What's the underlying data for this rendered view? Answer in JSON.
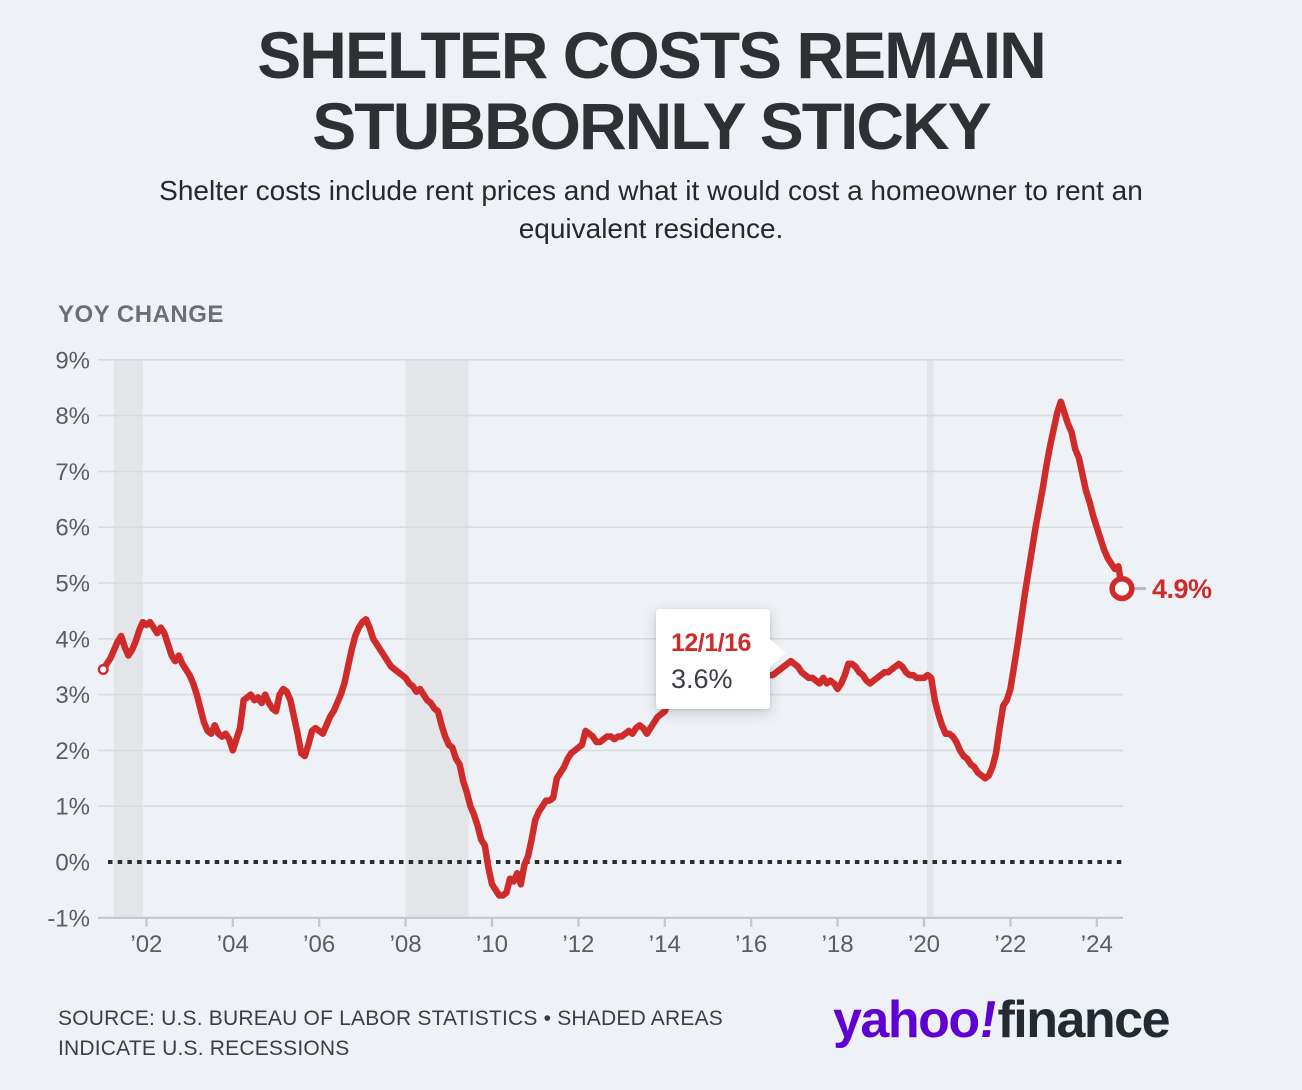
{
  "title": {
    "line1": "SHELTER COSTS REMAIN",
    "line2": "STUBBORNLY STICKY"
  },
  "subtitle": {
    "line1": "Shelter costs include rent prices and what it would cost a homeowner to rent an",
    "line2": "equivalent residence."
  },
  "source": {
    "line1": "SOURCE: U.S. BUREAU OF LABOR STATISTICS • SHADED AREAS",
    "line2": "INDICATE U.S. RECESSIONS"
  },
  "logo": {
    "yahoo": "yahoo",
    "bang": "!",
    "finance": "finance"
  },
  "colors": {
    "background": "#eef1f5",
    "line": "#d02b2b",
    "title_text": "#2e3134",
    "subtitle_text": "#26282c",
    "muted_label": "#6c6f75",
    "axis_text": "#5a5e64",
    "gridline": "#d8dbe0",
    "axis_line": "#c3c7cd",
    "recession_band": "#e3e5e9",
    "zero_line": "#2b2d30",
    "end_dash": "#b7bbc1",
    "source_text": "#3b3e44",
    "logo_purple": "#5f01d1",
    "logo_dark": "#232a31",
    "tooltip_bg": "#ffffff",
    "tooltip_value": "#3a3d42"
  },
  "chart_data": {
    "type": "line",
    "title": "YOY CHANGE",
    "unit": "%",
    "frequency": "monthly",
    "start": {
      "year": 2001,
      "month": 1
    },
    "end": {
      "year": 2024,
      "month": 8
    },
    "ylim": [
      -1,
      9
    ],
    "grid": true,
    "zero_line_style": "dotted",
    "legend_position": "none",
    "yticks": [
      {
        "value": 9,
        "label": "9%"
      },
      {
        "value": 8,
        "label": "8%"
      },
      {
        "value": 7,
        "label": "7%"
      },
      {
        "value": 6,
        "label": "6%"
      },
      {
        "value": 5,
        "label": "5%"
      },
      {
        "value": 4,
        "label": "4%"
      },
      {
        "value": 3,
        "label": "3%"
      },
      {
        "value": 2,
        "label": "2%"
      },
      {
        "value": 1,
        "label": "1%"
      },
      {
        "value": 0,
        "label": "0%"
      },
      {
        "value": -1,
        "label": "-1%"
      }
    ],
    "xticks": [
      {
        "year": 2002,
        "label": "’02"
      },
      {
        "year": 2004,
        "label": "’04"
      },
      {
        "year": 2006,
        "label": "’06"
      },
      {
        "year": 2008,
        "label": "’08"
      },
      {
        "year": 2010,
        "label": "’10"
      },
      {
        "year": 2012,
        "label": "’12"
      },
      {
        "year": 2014,
        "label": "’14"
      },
      {
        "year": 2016,
        "label": "’16"
      },
      {
        "year": 2018,
        "label": "’18"
      },
      {
        "year": 2020,
        "label": "’20"
      },
      {
        "year": 2022,
        "label": "’22"
      },
      {
        "year": 2024,
        "label": "’24"
      }
    ],
    "recessions": [
      {
        "start": 2001.25,
        "end": 2001.92
      },
      {
        "start": 2008.0,
        "end": 2009.46
      },
      {
        "start": 2020.07,
        "end": 2020.22
      }
    ],
    "tooltip": {
      "date": "12/1/16",
      "value": "3.6%"
    },
    "end_label": "4.9%",
    "end_value": 4.9,
    "values": [
      3.45,
      3.55,
      3.65,
      3.8,
      3.95,
      4.05,
      3.85,
      3.7,
      3.8,
      3.95,
      4.15,
      4.3,
      4.25,
      4.3,
      4.2,
      4.1,
      4.2,
      4.1,
      3.9,
      3.7,
      3.6,
      3.7,
      3.55,
      3.45,
      3.35,
      3.2,
      3.0,
      2.75,
      2.5,
      2.35,
      2.3,
      2.45,
      2.3,
      2.25,
      2.3,
      2.2,
      2.0,
      2.2,
      2.4,
      2.9,
      2.95,
      3.0,
      2.9,
      2.95,
      2.85,
      3.0,
      2.85,
      2.75,
      2.7,
      3.0,
      3.1,
      3.05,
      2.9,
      2.6,
      2.3,
      1.95,
      1.9,
      2.1,
      2.35,
      2.4,
      2.35,
      2.3,
      2.45,
      2.6,
      2.7,
      2.85,
      3.0,
      3.2,
      3.5,
      3.8,
      4.05,
      4.2,
      4.3,
      4.35,
      4.2,
      4.0,
      3.9,
      3.8,
      3.7,
      3.6,
      3.5,
      3.45,
      3.4,
      3.35,
      3.3,
      3.2,
      3.15,
      3.05,
      3.1,
      3.0,
      2.9,
      2.85,
      2.75,
      2.7,
      2.45,
      2.25,
      2.1,
      2.05,
      1.85,
      1.75,
      1.45,
      1.25,
      1.0,
      0.85,
      0.65,
      0.4,
      0.3,
      -0.1,
      -0.4,
      -0.5,
      -0.6,
      -0.6,
      -0.55,
      -0.3,
      -0.35,
      -0.2,
      -0.4,
      -0.05,
      0.1,
      0.4,
      0.75,
      0.9,
      1.0,
      1.1,
      1.1,
      1.15,
      1.5,
      1.6,
      1.7,
      1.85,
      1.95,
      2.0,
      2.05,
      2.1,
      2.35,
      2.3,
      2.25,
      2.15,
      2.15,
      2.2,
      2.25,
      2.25,
      2.2,
      2.25,
      2.25,
      2.3,
      2.35,
      2.3,
      2.4,
      2.45,
      2.4,
      2.3,
      2.4,
      2.5,
      2.6,
      2.65,
      2.7,
      2.85,
      2.95,
      3.0,
      3.0,
      3.05,
      3.05,
      3.1,
      3.1,
      3.15,
      3.15,
      3.2,
      3.15,
      3.2,
      3.25,
      3.3,
      3.35,
      3.4,
      3.45,
      3.5,
      3.45,
      3.4,
      3.4,
      3.4,
      3.4,
      3.45,
      3.5,
      3.45,
      3.4,
      3.35,
      3.35,
      3.4,
      3.45,
      3.5,
      3.55,
      3.6,
      3.55,
      3.5,
      3.4,
      3.35,
      3.3,
      3.3,
      3.25,
      3.2,
      3.3,
      3.2,
      3.25,
      3.2,
      3.1,
      3.2,
      3.35,
      3.55,
      3.55,
      3.5,
      3.4,
      3.35,
      3.25,
      3.2,
      3.25,
      3.3,
      3.35,
      3.4,
      3.4,
      3.45,
      3.5,
      3.55,
      3.5,
      3.4,
      3.35,
      3.35,
      3.3,
      3.3,
      3.3,
      3.35,
      3.3,
      2.9,
      2.65,
      2.45,
      2.3,
      2.3,
      2.25,
      2.15,
      2.0,
      1.9,
      1.85,
      1.75,
      1.7,
      1.6,
      1.55,
      1.5,
      1.55,
      1.7,
      1.95,
      2.4,
      2.8,
      2.9,
      3.1,
      3.5,
      3.9,
      4.35,
      4.8,
      5.2,
      5.6,
      6.0,
      6.35,
      6.7,
      7.1,
      7.45,
      7.75,
      8.05,
      8.25,
      8.05,
      7.85,
      7.7,
      7.4,
      7.25,
      6.95,
      6.65,
      6.45,
      6.2,
      6.0,
      5.8,
      5.6,
      5.45,
      5.35,
      5.25,
      5.3,
      4.9
    ]
  }
}
